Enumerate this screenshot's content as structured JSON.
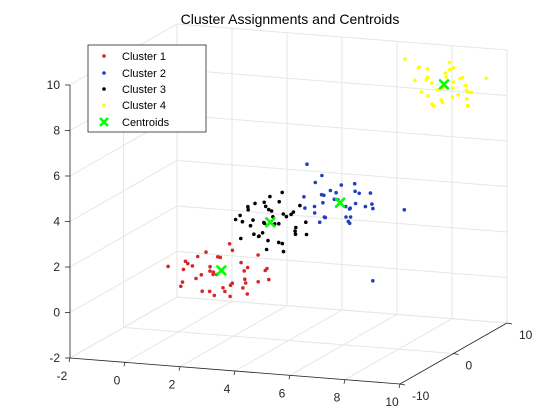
{
  "chart_data": {
    "type": "scatter",
    "title": "Cluster Assignments and Centroids",
    "xlabel": "",
    "ylabel": "",
    "zlabel": "",
    "view": "3d",
    "grid": true,
    "legend_position": "top-left",
    "xlim": [
      -2,
      10
    ],
    "ylim": [
      -10,
      10
    ],
    "zlim": [
      -2,
      10
    ],
    "x_ticks": [
      "-2",
      "0",
      "2",
      "4",
      "6",
      "8",
      "10"
    ],
    "y_ticks": [
      "-10",
      "0",
      "10"
    ],
    "z_ticks": [
      "-2",
      "0",
      "2",
      "4",
      "6",
      "8",
      "10"
    ],
    "series": [
      {
        "name": "Cluster 1",
        "color": "#d62728",
        "marker": "dot",
        "points": [
          [
            1.2,
            0.3,
            0.6
          ],
          [
            0.7,
            -1.0,
            1.1
          ],
          [
            1.8,
            0.8,
            0.2
          ],
          [
            2.3,
            1.1,
            0.9
          ],
          [
            0.2,
            -0.6,
            0.1
          ],
          [
            1.5,
            0.1,
            1.4
          ],
          [
            2.8,
            0.5,
            0.4
          ],
          [
            0.9,
            1.2,
            -0.3
          ],
          [
            1.1,
            -1.4,
            0.8
          ],
          [
            2.0,
            -0.2,
            1.8
          ],
          [
            0.5,
            0.7,
            0.3
          ],
          [
            1.6,
            1.5,
            0.0
          ],
          [
            2.6,
            -0.8,
            0.5
          ],
          [
            0.3,
            0.2,
            1.0
          ],
          [
            1.4,
            -0.5,
            -0.2
          ],
          [
            2.2,
            0.4,
            1.2
          ],
          [
            0.8,
            1.8,
            0.7
          ],
          [
            1.9,
            -1.1,
            0.1
          ],
          [
            1.0,
            0.0,
            1.6
          ],
          [
            2.9,
            1.3,
            0.8
          ],
          [
            0.4,
            -1.3,
            0.4
          ],
          [
            1.7,
            0.9,
            -0.4
          ],
          [
            2.4,
            -0.3,
            0.2
          ],
          [
            0.6,
            0.5,
            1.3
          ],
          [
            1.3,
            -0.8,
            0.9
          ],
          [
            2.1,
            1.6,
            0.3
          ],
          [
            1.0,
            2.2,
            1.1
          ],
          [
            2.5,
            0.0,
            -0.1
          ],
          [
            0.1,
            0.4,
            0.7
          ],
          [
            1.6,
            -1.7,
            1.0
          ],
          [
            3.1,
            0.6,
            1.0
          ],
          [
            1.8,
            0.3,
            2.0
          ],
          [
            0.9,
            -0.2,
            -0.1
          ],
          [
            2.7,
            1.0,
            1.5
          ],
          [
            1.2,
            1.0,
            0.5
          ],
          [
            -0.3,
            -0.4,
            0.9
          ],
          [
            3.4,
            -0.6,
            0.7
          ],
          [
            1.5,
            0.6,
            0.0
          ],
          [
            2.0,
            2.0,
            0.6
          ],
          [
            0.6,
            -1.8,
            1.4
          ]
        ]
      },
      {
        "name": "Cluster 2",
        "color": "#1f3fbf",
        "marker": "dot",
        "points": [
          [
            5.6,
            1.0,
            4.2
          ],
          [
            6.2,
            0.3,
            3.6
          ],
          [
            4.9,
            1.8,
            3.9
          ],
          [
            5.3,
            -0.5,
            4.6
          ],
          [
            6.8,
            1.2,
            4.1
          ],
          [
            5.0,
            0.7,
            3.2
          ],
          [
            6.0,
            2.1,
            4.8
          ],
          [
            4.6,
            -0.2,
            4.4
          ],
          [
            5.8,
            1.5,
            3.4
          ],
          [
            6.5,
            -0.3,
            4.3
          ],
          [
            5.2,
            2.4,
            4.0
          ],
          [
            4.8,
            0.9,
            4.9
          ],
          [
            6.1,
            0.6,
            3.9
          ],
          [
            5.5,
            -1.0,
            3.7
          ],
          [
            6.7,
            1.9,
            3.8
          ],
          [
            4.7,
            1.3,
            3.5
          ],
          [
            5.9,
            0.1,
            5.0
          ],
          [
            6.3,
            1.4,
            4.5
          ],
          [
            5.1,
            -0.8,
            4.1
          ],
          [
            5.7,
            2.8,
            3.6
          ],
          [
            6.9,
            0.4,
            4.7
          ],
          [
            4.5,
            0.5,
            3.8
          ],
          [
            5.4,
            1.7,
            4.4
          ],
          [
            6.4,
            -0.9,
            3.5
          ],
          [
            5.0,
            1.1,
            5.2
          ],
          [
            6.0,
            0.9,
            3.3
          ],
          [
            5.6,
            -0.4,
            4.8
          ],
          [
            4.9,
            2.0,
            4.2
          ],
          [
            6.6,
            1.0,
            4.0
          ],
          [
            5.3,
            0.2,
            3.5
          ],
          [
            7.9,
            1.6,
            3.9
          ],
          [
            7.3,
            -1.2,
            1.1
          ],
          [
            4.4,
            1.4,
            5.6
          ],
          [
            5.8,
            3.2,
            4.3
          ],
          [
            6.1,
            -0.1,
            4.1
          ]
        ]
      },
      {
        "name": "Cluster 3",
        "color": "#000000",
        "marker": "dot",
        "points": [
          [
            3.4,
            0.5,
            3.0
          ],
          [
            2.8,
            -0.3,
            2.6
          ],
          [
            3.9,
            1.0,
            3.4
          ],
          [
            3.1,
            0.8,
            2.2
          ],
          [
            2.5,
            -0.9,
            3.2
          ],
          [
            4.2,
            0.2,
            2.8
          ],
          [
            3.6,
            -1.1,
            3.8
          ],
          [
            2.9,
            1.4,
            3.6
          ],
          [
            3.3,
            -0.5,
            2.0
          ],
          [
            4.0,
            1.3,
            2.5
          ],
          [
            2.6,
            0.1,
            2.9
          ],
          [
            3.7,
            -0.2,
            4.1
          ],
          [
            3.0,
            0.6,
            3.9
          ],
          [
            4.4,
            -0.7,
            3.1
          ],
          [
            2.7,
            1.1,
            2.3
          ],
          [
            3.5,
            1.6,
            3.3
          ],
          [
            3.2,
            -1.4,
            2.7
          ],
          [
            4.1,
            0.4,
            3.6
          ],
          [
            2.4,
            0.7,
            3.5
          ],
          [
            3.8,
            -0.8,
            2.4
          ],
          [
            3.1,
            0.0,
            3.1
          ],
          [
            2.9,
            -0.6,
            4.0
          ],
          [
            4.3,
            1.7,
            3.0
          ],
          [
            3.6,
            0.9,
            2.1
          ],
          [
            2.5,
            -1.2,
            2.5
          ],
          [
            3.4,
            1.9,
            4.2
          ],
          [
            4.0,
            -0.4,
            3.5
          ],
          [
            3.0,
            0.3,
            2.6
          ],
          [
            2.2,
            0.2,
            3.3
          ],
          [
            3.9,
            -1.3,
            3.3
          ],
          [
            2.8,
            1.7,
            2.8
          ],
          [
            3.3,
            -0.1,
            3.7
          ],
          [
            4.5,
            0.8,
            2.6
          ],
          [
            3.2,
            1.2,
            3.2
          ],
          [
            2.6,
            -0.4,
            3.8
          ],
          [
            3.7,
            0.6,
            1.8
          ],
          [
            1.9,
            0.9,
            3.0
          ],
          [
            3.5,
            -0.9,
            4.4
          ],
          [
            4.2,
            1.1,
            3.8
          ],
          [
            3.0,
            -1.5,
            3.4
          ]
        ]
      },
      {
        "name": "Cluster 4",
        "color": "#ffff00",
        "marker": "dot",
        "points": [
          [
            8.0,
            8.3,
            8.4
          ],
          [
            7.6,
            7.5,
            8.9
          ],
          [
            8.4,
            9.1,
            8.0
          ],
          [
            7.3,
            8.8,
            8.6
          ],
          [
            8.7,
            7.9,
            8.9
          ],
          [
            7.9,
            9.5,
            8.2
          ],
          [
            8.2,
            7.2,
            7.9
          ],
          [
            7.5,
            8.0,
            9.2
          ],
          [
            8.8,
            8.6,
            8.3
          ],
          [
            7.8,
            9.8,
            8.8
          ],
          [
            8.5,
            7.6,
            8.5
          ],
          [
            7.2,
            8.4,
            8.1
          ],
          [
            8.1,
            9.0,
            9.4
          ],
          [
            7.7,
            7.8,
            7.7
          ],
          [
            8.6,
            8.9,
            8.8
          ],
          [
            7.4,
            9.3,
            8.4
          ],
          [
            8.3,
            7.4,
            9.0
          ],
          [
            8.9,
            8.1,
            8.0
          ],
          [
            7.6,
            8.6,
            7.5
          ],
          [
            8.0,
            9.6,
            9.0
          ],
          [
            8.4,
            8.2,
            9.3
          ],
          [
            7.1,
            7.7,
            8.7
          ],
          [
            8.7,
            9.4,
            8.1
          ],
          [
            7.9,
            8.5,
            7.8
          ],
          [
            8.3,
            8.7,
            8.6
          ],
          [
            9.2,
            7.5,
            8.4
          ],
          [
            7.0,
            9.0,
            9.1
          ],
          [
            8.6,
            7.0,
            8.2
          ],
          [
            8.8,
            8.8,
            7.6
          ],
          [
            7.5,
            8.1,
            8.0
          ],
          [
            6.6,
            8.4,
            9.5
          ],
          [
            9.4,
            9.2,
            8.8
          ],
          [
            8.1,
            6.8,
            8.5
          ],
          [
            7.3,
            7.3,
            9.3
          ],
          [
            8.5,
            10.0,
            8.3
          ]
        ]
      }
    ],
    "centroids": {
      "name": "Centroids",
      "color": "#00ff00",
      "marker": "x",
      "points": [
        [
          1.5,
          0.3,
          0.8
        ],
        [
          5.7,
          0.9,
          4.1
        ],
        [
          3.3,
          0.2,
          3.1
        ],
        [
          8.0,
          8.5,
          8.5
        ]
      ]
    }
  }
}
